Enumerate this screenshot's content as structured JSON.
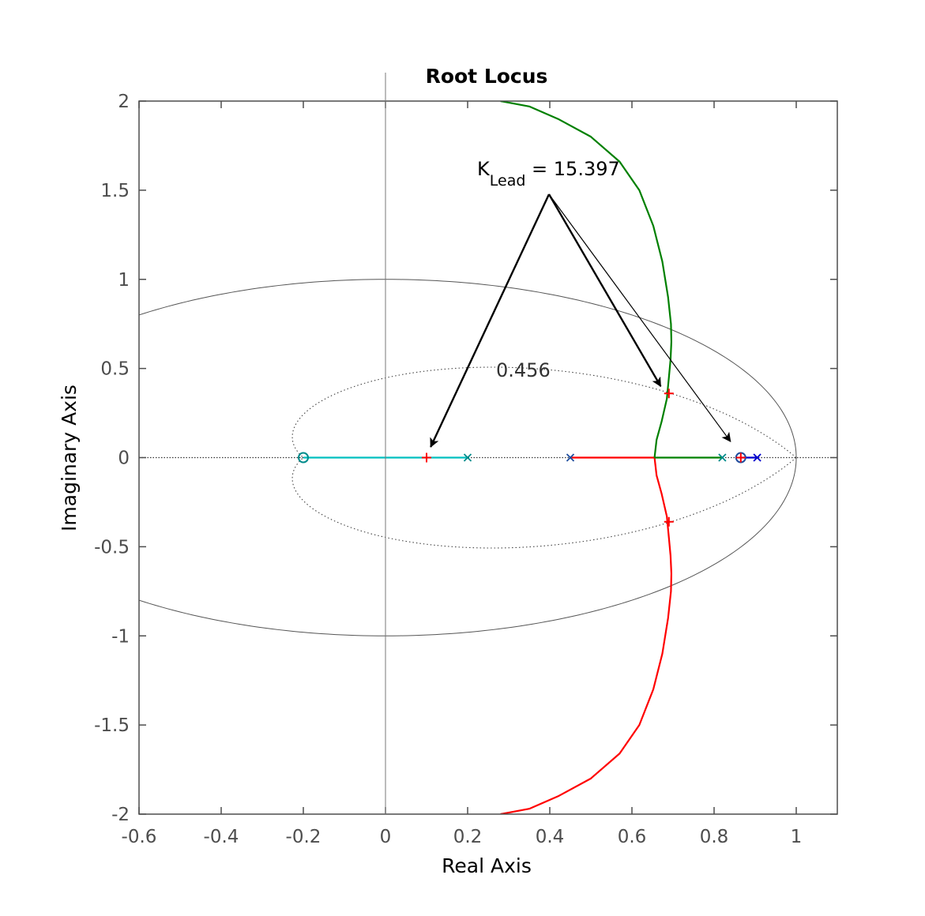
{
  "chart_data": {
    "type": "line",
    "title": "Root Locus",
    "xlabel": "Real Axis",
    "ylabel": "Imaginary Axis",
    "xlim": [
      -0.6,
      1.1
    ],
    "ylim": [
      -2,
      2
    ],
    "xticks": [
      "-0.6",
      "-0.4",
      "-0.2",
      "0",
      "0.2",
      "0.4",
      "0.6",
      "0.8",
      "1"
    ],
    "yticks": [
      "2",
      "1.5",
      "1",
      "0.5",
      "0",
      "-0.5",
      "-1",
      "-1.5",
      "-2"
    ],
    "grid": false,
    "unit_circle": true,
    "damping_contour": {
      "zeta": 0.456,
      "label": "0.456"
    },
    "series": [
      {
        "color": "#00bfbf",
        "points": [
          [
            -0.2,
            0
          ],
          [
            0.2,
            0
          ]
        ]
      },
      {
        "color": "#ff0000",
        "points": [
          [
            0.45,
            0
          ],
          [
            0.655,
            0
          ],
          [
            0.66,
            -0.1
          ],
          [
            0.672,
            -0.2
          ],
          [
            0.685,
            -0.33
          ],
          [
            0.69,
            -0.45
          ],
          [
            0.694,
            -0.55
          ],
          [
            0.696,
            -0.65
          ],
          [
            0.695,
            -0.75
          ],
          [
            0.688,
            -0.9
          ],
          [
            0.674,
            -1.1
          ],
          [
            0.652,
            -1.3
          ],
          [
            0.618,
            -1.5
          ],
          [
            0.57,
            -1.66
          ],
          [
            0.5,
            -1.8
          ],
          [
            0.42,
            -1.9
          ],
          [
            0.35,
            -1.97
          ],
          [
            0.28,
            -2.0
          ]
        ]
      },
      {
        "color": "#008000",
        "points": [
          [
            0.655,
            0
          ],
          [
            0.66,
            0.1
          ],
          [
            0.672,
            0.2
          ],
          [
            0.685,
            0.33
          ],
          [
            0.69,
            0.45
          ],
          [
            0.694,
            0.55
          ],
          [
            0.696,
            0.65
          ],
          [
            0.695,
            0.75
          ],
          [
            0.688,
            0.9
          ],
          [
            0.674,
            1.1
          ],
          [
            0.652,
            1.3
          ],
          [
            0.618,
            1.5
          ],
          [
            0.57,
            1.66
          ],
          [
            0.5,
            1.8
          ],
          [
            0.42,
            1.9
          ],
          [
            0.35,
            1.97
          ],
          [
            0.28,
            2.0
          ]
        ]
      },
      {
        "color": "#008000",
        "points": [
          [
            0.655,
            0
          ],
          [
            0.82,
            0
          ]
        ]
      },
      {
        "color": "#0000cc",
        "points": [
          [
            0.865,
            0
          ],
          [
            0.905,
            0
          ]
        ]
      }
    ],
    "poles": [
      {
        "x": 0.2,
        "y": 0,
        "color": "#008b8b"
      },
      {
        "x": 0.45,
        "y": 0,
        "color": "#1f4e9f"
      },
      {
        "x": 0.82,
        "y": 0,
        "color": "#008b8b"
      },
      {
        "x": 0.905,
        "y": 0,
        "color": "#0000cc"
      }
    ],
    "zeros": [
      {
        "x": -0.2,
        "y": 0,
        "color": "#008b8b"
      },
      {
        "x": 0.865,
        "y": 0,
        "color": "#1f4e9f"
      }
    ],
    "closed_loop_poles": [
      {
        "x": 0.1,
        "y": 0
      },
      {
        "x": 0.69,
        "y": 0.36
      },
      {
        "x": 0.69,
        "y": -0.36
      },
      {
        "x": 0.865,
        "y": 0
      }
    ],
    "annotation": {
      "symbol": "K",
      "subscript": "Lead",
      "value_text": " = 15.397",
      "arrow_targets": [
        [
          0.11,
          0.06
        ],
        [
          0.67,
          0.4
        ],
        [
          0.84,
          0.09
        ]
      ]
    }
  }
}
